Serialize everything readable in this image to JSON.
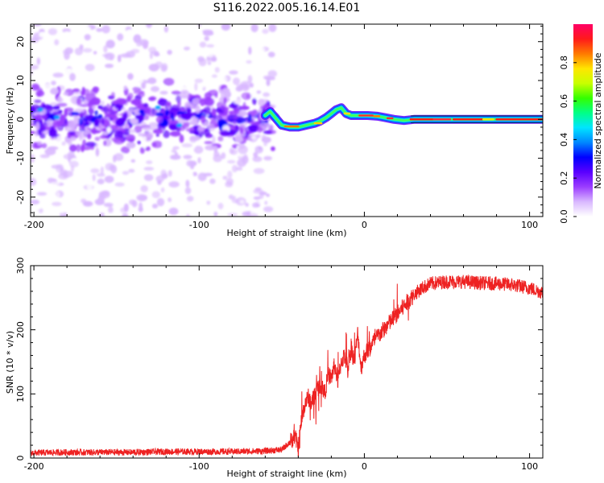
{
  "figure": {
    "title": "S116.2022.005.16.14.E01"
  },
  "chart_data": [
    {
      "type": "heatmap",
      "xlabel": "Height of straight line (km)",
      "ylabel": "Frequency (Hz)",
      "xlim": [
        -202,
        108
      ],
      "ylim": [
        -25,
        24.5
      ],
      "xticks": [
        "-200",
        "-100",
        "0",
        "100"
      ],
      "xtick_values": [
        -200,
        -100,
        0,
        100
      ],
      "yticks": [
        "-20",
        "-10",
        "0",
        "10",
        "20"
      ],
      "ytick_values": [
        -20,
        -10,
        0,
        10,
        20
      ],
      "grid": false,
      "colorbar": {
        "label": "Normalized spectral amplitude",
        "range": [
          0,
          1
        ],
        "ticks": [
          "0.0",
          "0.2",
          "0.4",
          "0.6",
          "0.8"
        ],
        "tick_values": [
          0,
          0.2,
          0.4,
          0.6,
          0.8
        ],
        "colormap": [
          "#ffffff",
          "#d9b8ff",
          "#9b3dff",
          "#5a00ff",
          "#0000ff",
          "#0088ff",
          "#00e5ff",
          "#00ff88",
          "#33ff00",
          "#c8ff00",
          "#ffe600",
          "#ff7a00",
          "#ff1a1a",
          "#ff0066"
        ]
      },
      "tone_frequency": [
        [
          -60,
          1.0
        ],
        [
          -57,
          2.0
        ],
        [
          -54,
          0.5
        ],
        [
          -50,
          -1.5
        ],
        [
          -45,
          -2.0
        ],
        [
          -40,
          -2.0
        ],
        [
          -35,
          -1.5
        ],
        [
          -30,
          -1.0
        ],
        [
          -27,
          -0.5
        ],
        [
          -23,
          0.5
        ],
        [
          -20,
          1.5
        ],
        [
          -17,
          2.5
        ],
        [
          -14,
          3.0
        ],
        [
          -11,
          1.5
        ],
        [
          -8,
          1.0
        ],
        [
          -3,
          1.0
        ],
        [
          2,
          1.0
        ],
        [
          8,
          0.8
        ],
        [
          12,
          0.5
        ],
        [
          18,
          0.0
        ],
        [
          24,
          -0.3
        ],
        [
          30,
          0.0
        ],
        [
          40,
          0.0
        ],
        [
          60,
          0.0
        ],
        [
          80,
          0.0
        ],
        [
          108,
          0.0
        ]
      ]
    },
    {
      "type": "line",
      "xlabel": "Height of straight line (km)",
      "ylabel": "SNR (10 * v/v)",
      "xlim": [
        -202,
        108
      ],
      "ylim": [
        0,
        300
      ],
      "xticks": [
        "-200",
        "-100",
        "0",
        "100"
      ],
      "xtick_values": [
        -200,
        -100,
        0,
        100
      ],
      "yticks": [
        "0",
        "100",
        "200",
        "300"
      ],
      "ytick_values": [
        0,
        100,
        200,
        300
      ],
      "grid": false,
      "series": [
        {
          "color": "#ee2222",
          "x": [
            -202,
            -180,
            -160,
            -140,
            -120,
            -100,
            -80,
            -60,
            -50,
            -45,
            -42,
            -40,
            -38,
            -36,
            -34,
            -32,
            -30,
            -28,
            -26,
            -24,
            -22,
            -20,
            -18,
            -16,
            -14,
            -12,
            -10,
            -8,
            -6,
            -4,
            -2,
            0,
            5,
            10,
            15,
            20,
            25,
            30,
            35,
            40,
            50,
            60,
            70,
            80,
            90,
            100,
            108
          ],
          "y": [
            8,
            9,
            9,
            9,
            10,
            10,
            10,
            11,
            13,
            25,
            35,
            15,
            60,
            85,
            95,
            85,
            100,
            110,
            115,
            100,
            130,
            125,
            145,
            120,
            150,
            160,
            140,
            175,
            150,
            195,
            140,
            160,
            180,
            195,
            210,
            225,
            240,
            255,
            265,
            272,
            275,
            275,
            273,
            272,
            270,
            265,
            258
          ]
        }
      ]
    }
  ]
}
